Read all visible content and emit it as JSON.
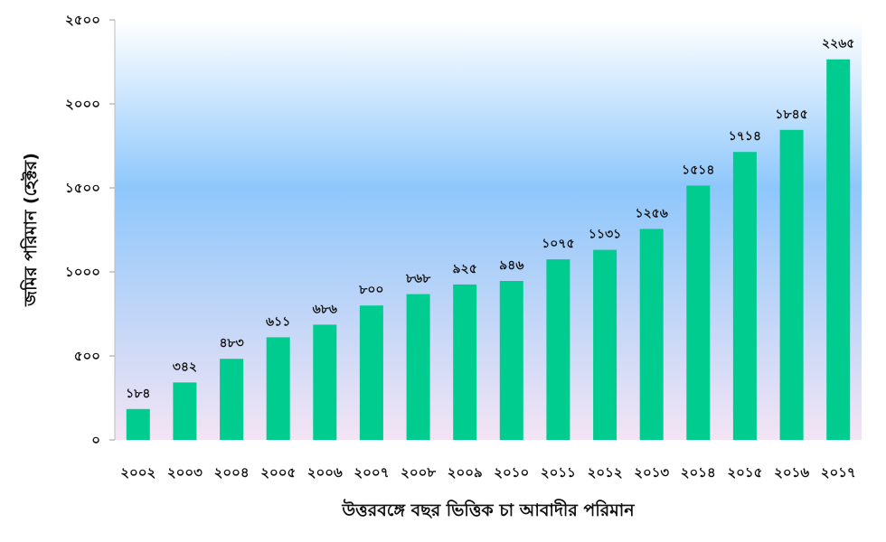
{
  "chart_data": {
    "type": "bar",
    "categories": [
      "২০০২",
      "২০০৩",
      "২০০৪",
      "২০০৫",
      "২০০৬",
      "২০০৭",
      "২০০৮",
      "২০০৯",
      "২০১০",
      "২০১১",
      "২০১২",
      "২০১৩",
      "২০১৪",
      "২০১৫",
      "২০১৬",
      "২০১৭"
    ],
    "values": [
      184,
      342,
      483,
      611,
      686,
      800,
      868,
      925,
      946,
      1075,
      1131,
      1256,
      1514,
      1714,
      1845,
      2265
    ],
    "data_labels": [
      "১৮৪",
      "৩৪২",
      "৪৮৩",
      "৬১১",
      "৬৮৬",
      "৮০০",
      "৮৬৮",
      "৯২৫",
      "৯৪৬",
      "১০৭৫",
      "১১৩১",
      "১২৫৬",
      "১৫১৪",
      "১৭১৪",
      "১৮৪৫",
      "২২৬৫"
    ],
    "y_ticks": [
      0,
      500,
      1000,
      1500,
      2000,
      2500
    ],
    "y_tick_labels": [
      "০",
      "৫০০",
      "১০০০",
      "১৫০০",
      "২০০০",
      "২৫০০"
    ],
    "ylim": [
      0,
      2500
    ],
    "xlabel": "উত্তরবঙ্গে বছর ভিত্তিক চা আবাদীর পরিমান",
    "ylabel": "জমির পরিমান (হেক্টর)",
    "bar_color": "#00cc8f",
    "background_gradient": [
      "#ffffff",
      "#8ec7fb",
      "#f3e4f4"
    ],
    "grid": false,
    "legend": "none"
  }
}
